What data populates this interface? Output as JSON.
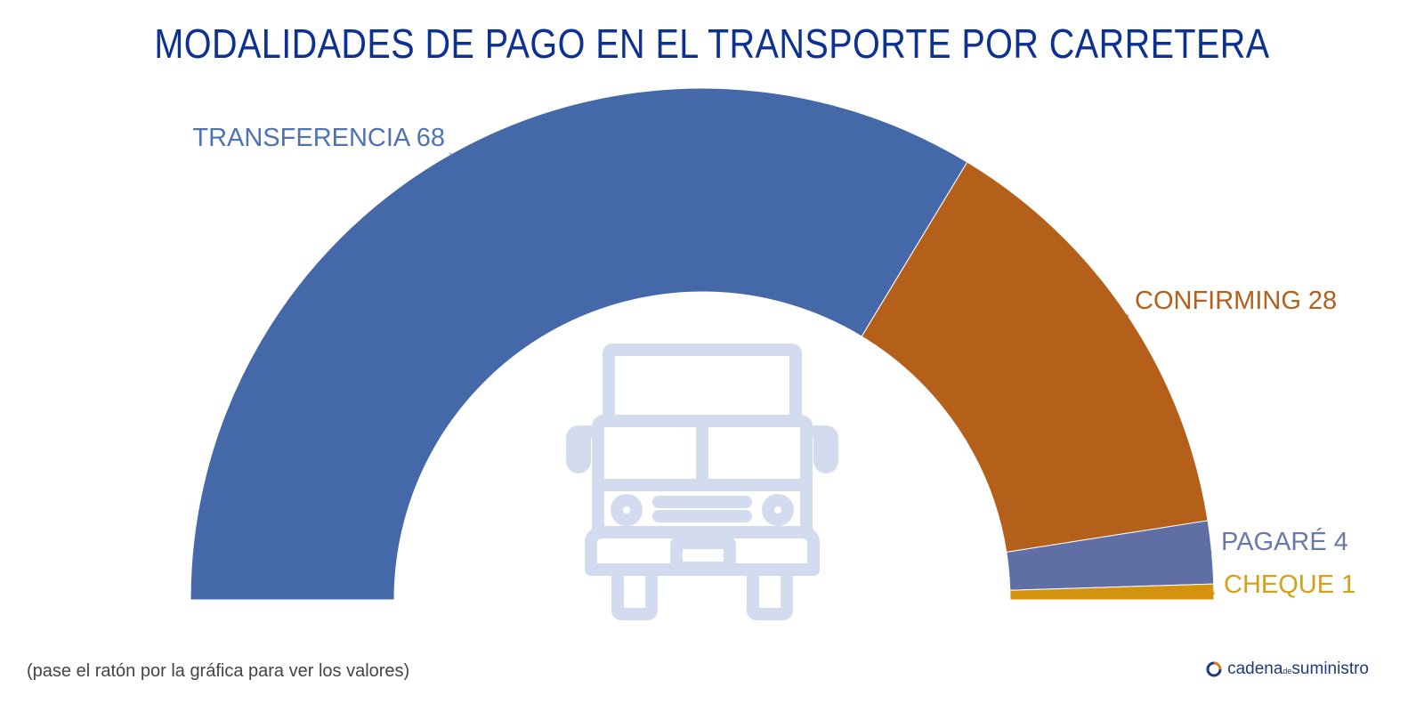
{
  "title": "MODALIDADES DE PAGO EN EL TRANSPORTE POR CARRETERA",
  "footnote": "(pase el ratón por la gráfica para ver los valores)",
  "brand": {
    "main": "cadena",
    "small": "de",
    "end": "suministro"
  },
  "colors": {
    "title": "#0d3192",
    "icon": "#d3dbee"
  },
  "chart_data": {
    "type": "pie",
    "subtype": "half-donut",
    "title": "MODALIDADES DE PAGO EN EL TRANSPORTE POR CARRETERA",
    "categories": [
      "TRANSFERENCIA",
      "CONFIRMING",
      "PAGARÉ",
      "CHEQUE"
    ],
    "values": [
      68,
      28,
      4,
      1
    ],
    "colors": [
      "#4569a8",
      "#b45f1a",
      "#5f6ea5",
      "#d4930f"
    ],
    "label_colors": [
      "#4f73b0",
      "#b45f1a",
      "#6a79ab",
      "#d4a019"
    ]
  }
}
